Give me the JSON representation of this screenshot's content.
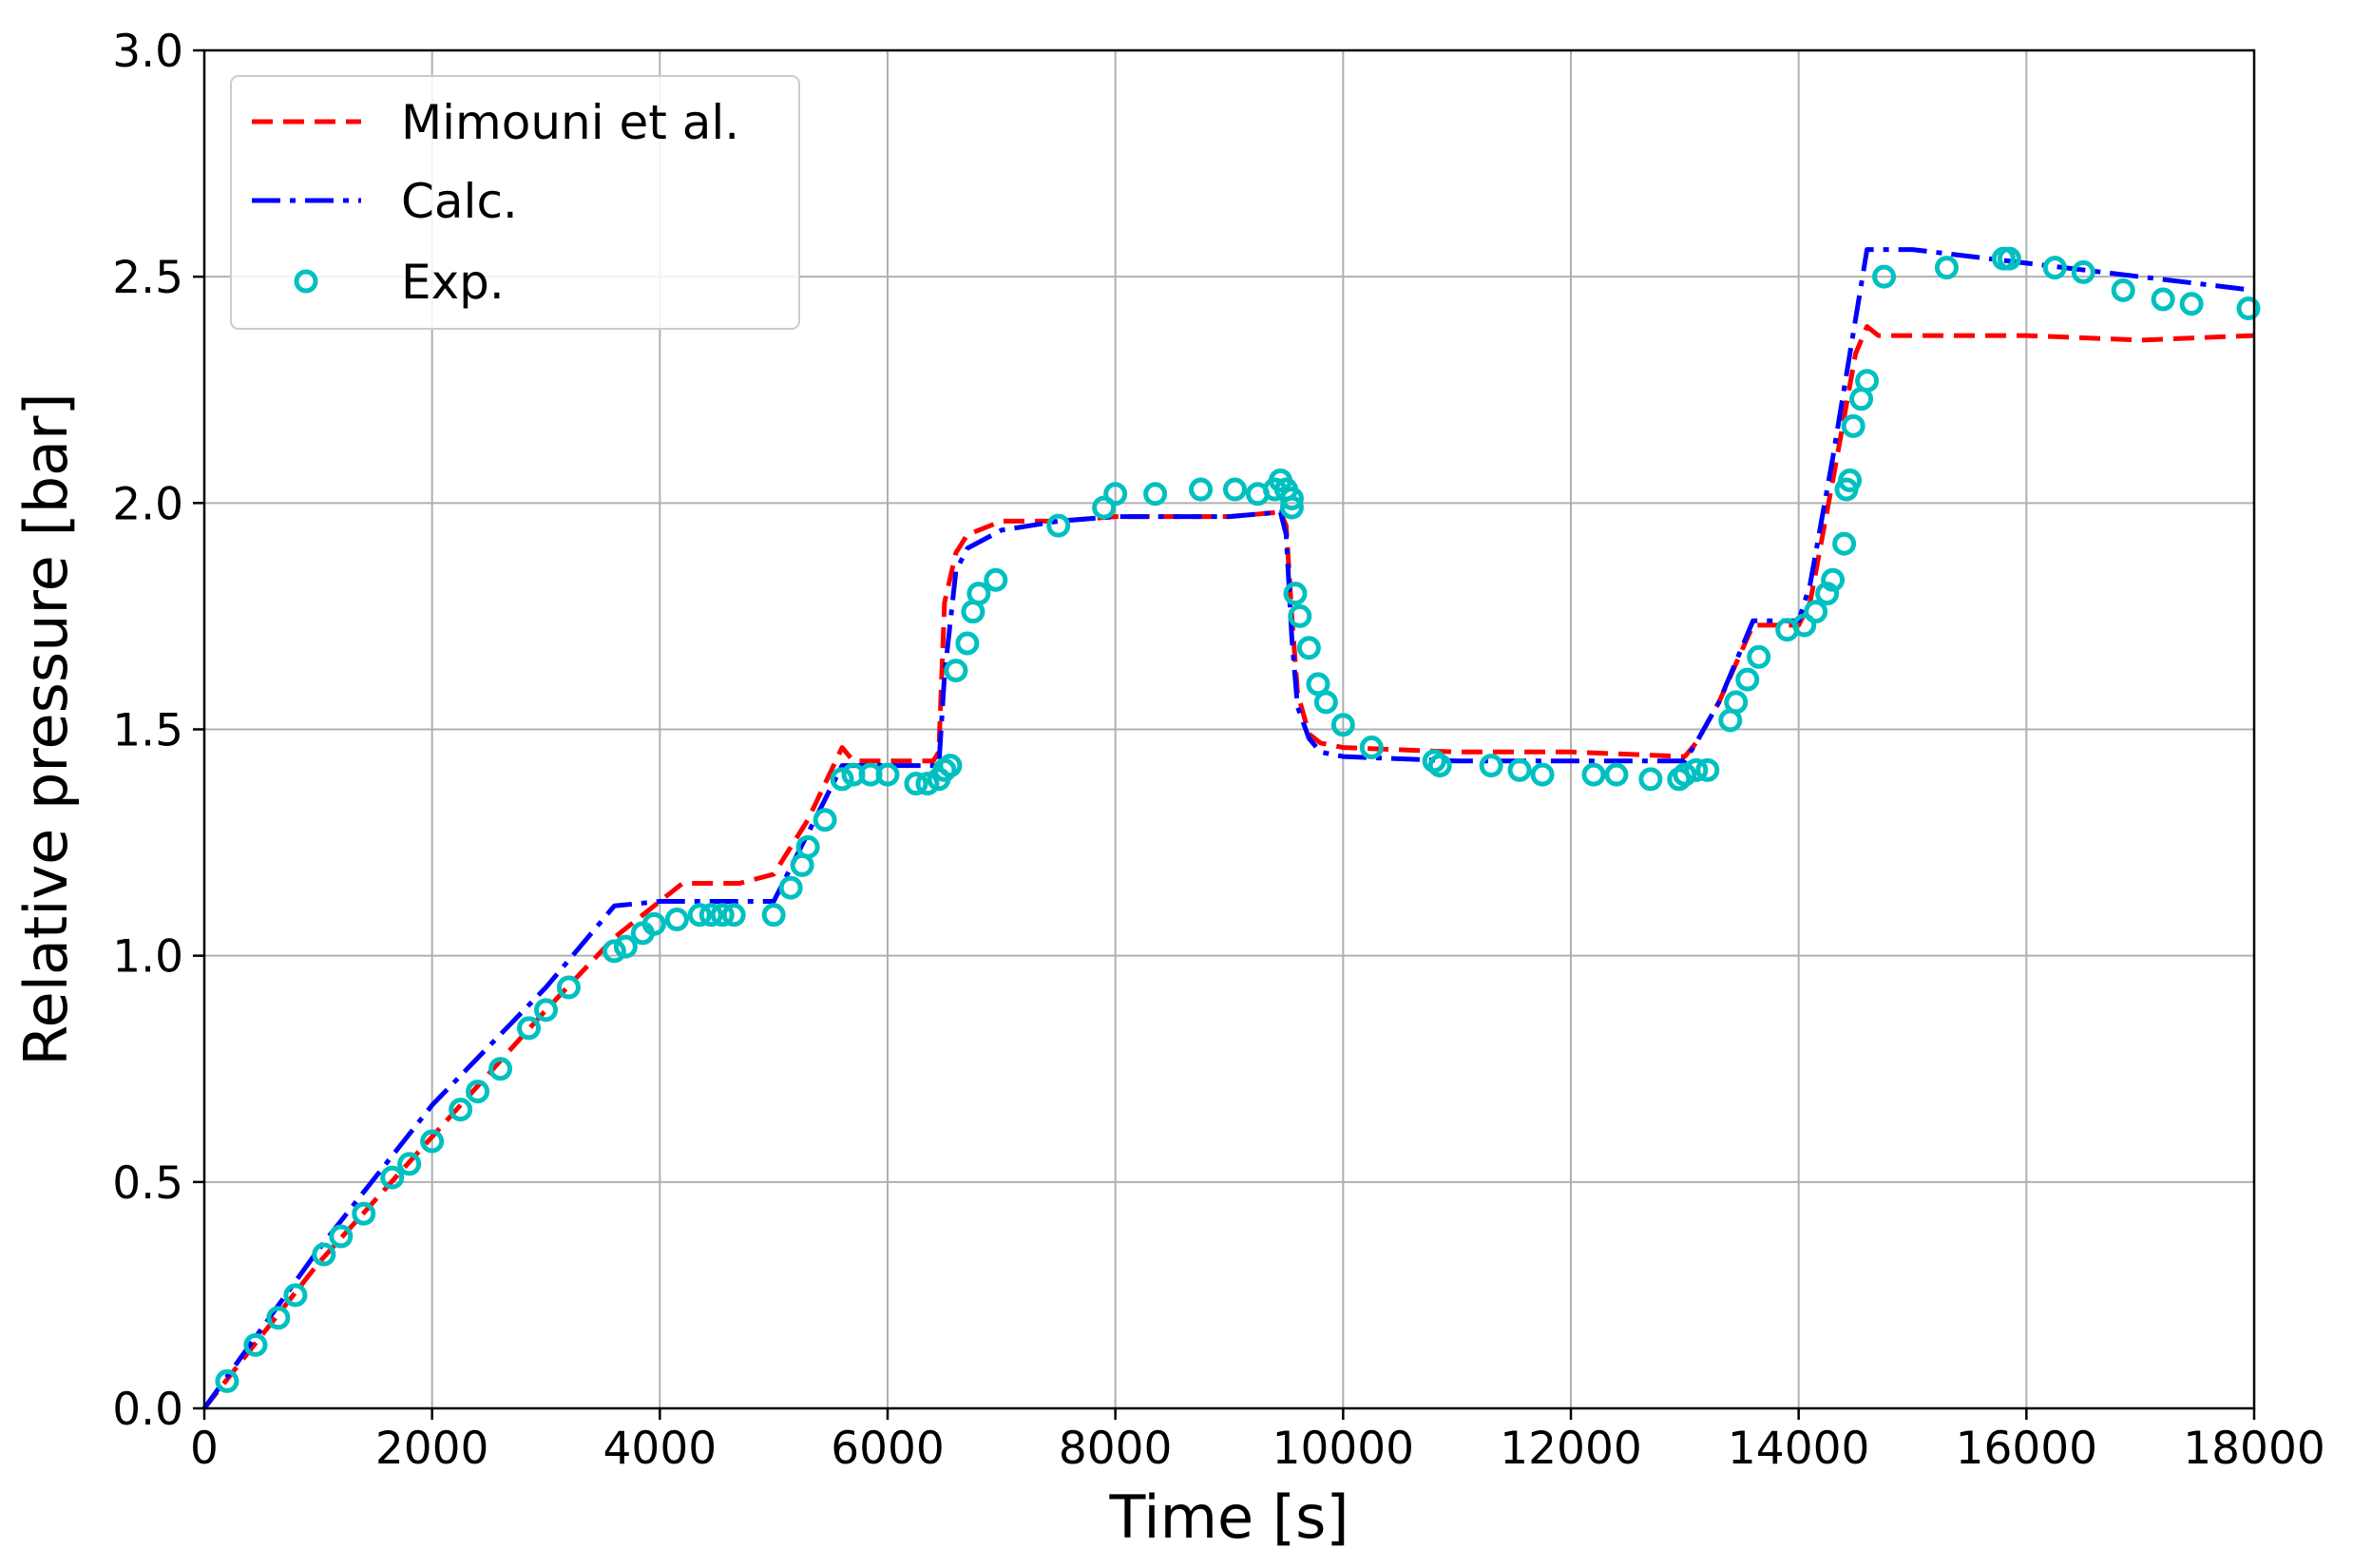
{
  "chart_data": {
    "type": "line",
    "title": "",
    "xlabel": "Time [s]",
    "ylabel": "Relative pressure [bar]",
    "xlim": [
      0,
      18000
    ],
    "ylim": [
      0.0,
      3.0
    ],
    "x_ticks": [
      0,
      2000,
      4000,
      6000,
      8000,
      10000,
      12000,
      14000,
      16000,
      18000
    ],
    "x_tick_labels": [
      "0",
      "2000",
      "4000",
      "6000",
      "8000",
      "10000",
      "12000",
      "14000",
      "16000",
      "18000"
    ],
    "y_ticks": [
      0.0,
      0.5,
      1.0,
      1.5,
      2.0,
      2.5,
      3.0
    ],
    "y_tick_labels": [
      "0.0",
      "0.5",
      "1.0",
      "1.5",
      "2.0",
      "2.5",
      "3.0"
    ],
    "grid": true,
    "legend_position": "top-left",
    "series": [
      {
        "name": "Mimouni et al.",
        "style": "dashed",
        "color": "#ff0000",
        "x": [
          0,
          1000,
          2000,
          3000,
          3600,
          4000,
          4200,
          4700,
          5000,
          5300,
          5600,
          5700,
          6000,
          6400,
          6450,
          6500,
          6600,
          6700,
          7000,
          7500,
          8000,
          8500,
          9000,
          9450,
          9500,
          9550,
          9600,
          9700,
          9800,
          10000,
          11000,
          12000,
          13000,
          13100,
          13300,
          13600,
          14000,
          14100,
          14300,
          14500,
          14600,
          14700,
          15000,
          16000,
          17000,
          18000
        ],
        "y": [
          0.0,
          0.32,
          0.6,
          0.88,
          1.04,
          1.12,
          1.16,
          1.16,
          1.18,
          1.3,
          1.46,
          1.43,
          1.43,
          1.43,
          1.45,
          1.78,
          1.89,
          1.93,
          1.96,
          1.96,
          1.97,
          1.97,
          1.97,
          1.98,
          1.95,
          1.75,
          1.58,
          1.49,
          1.47,
          1.46,
          1.45,
          1.45,
          1.44,
          1.47,
          1.56,
          1.73,
          1.73,
          1.78,
          2.05,
          2.33,
          2.39,
          2.37,
          2.37,
          2.37,
          2.36,
          2.37
        ]
      },
      {
        "name": "Calc.",
        "style": "dashdot",
        "color": "#0000ff",
        "x": [
          0,
          1000,
          2000,
          3000,
          3600,
          4000,
          5000,
          5200,
          5600,
          5700,
          6000,
          6450,
          6500,
          6600,
          6700,
          7000,
          7500,
          8000,
          9000,
          9450,
          9500,
          9550,
          9600,
          9700,
          9800,
          10000,
          11000,
          12000,
          13000,
          13100,
          13300,
          13600,
          14000,
          14100,
          14300,
          14600,
          14700,
          15000,
          16000,
          17000,
          18000
        ],
        "y": [
          0.0,
          0.35,
          0.67,
          0.93,
          1.11,
          1.12,
          1.12,
          1.22,
          1.42,
          1.42,
          1.42,
          1.42,
          1.62,
          1.85,
          1.9,
          1.94,
          1.96,
          1.97,
          1.97,
          1.98,
          1.93,
          1.7,
          1.55,
          1.48,
          1.45,
          1.44,
          1.43,
          1.43,
          1.43,
          1.47,
          1.56,
          1.74,
          1.74,
          1.82,
          2.1,
          2.56,
          2.56,
          2.56,
          2.53,
          2.5,
          2.47
        ]
      },
      {
        "name": "Exp.",
        "style": "markers",
        "color": "#00c0c0",
        "x": [
          200,
          450,
          650,
          800,
          1050,
          1200,
          1400,
          1650,
          1800,
          2000,
          2250,
          2400,
          2600,
          2850,
          3000,
          3200,
          3600,
          3700,
          3850,
          3950,
          4150,
          4350,
          4450,
          4550,
          4650,
          5000,
          5150,
          5250,
          5300,
          5450,
          5600,
          5700,
          5850,
          6000,
          6250,
          6350,
          6450,
          6500,
          6550,
          6600,
          6700,
          6750,
          6800,
          6950,
          7500,
          7900,
          8000,
          8350,
          8750,
          9050,
          9250,
          9400,
          9450,
          9500,
          9550,
          9550,
          9580,
          9620,
          9700,
          9780,
          9850,
          10000,
          10250,
          10800,
          10850,
          11300,
          11550,
          11750,
          12200,
          12400,
          12700,
          12950,
          13000,
          13100,
          13200,
          13400,
          13450,
          13550,
          13650,
          13900,
          14050,
          14150,
          14250,
          14300,
          14400,
          14420,
          14450,
          14480,
          14550,
          14600,
          14750,
          15300,
          15800,
          15850,
          16250,
          16500,
          16850,
          17200,
          17450,
          17950
        ],
        "y": [
          0.06,
          0.14,
          0.2,
          0.25,
          0.34,
          0.38,
          0.43,
          0.51,
          0.54,
          0.59,
          0.66,
          0.7,
          0.75,
          0.84,
          0.88,
          0.93,
          1.01,
          1.02,
          1.05,
          1.07,
          1.08,
          1.09,
          1.09,
          1.09,
          1.09,
          1.09,
          1.15,
          1.2,
          1.24,
          1.3,
          1.39,
          1.4,
          1.4,
          1.4,
          1.38,
          1.38,
          1.39,
          1.41,
          1.42,
          1.63,
          1.69,
          1.76,
          1.8,
          1.83,
          1.95,
          1.99,
          2.02,
          2.02,
          2.03,
          2.03,
          2.02,
          2.03,
          2.05,
          2.03,
          2.01,
          1.99,
          1.8,
          1.75,
          1.68,
          1.6,
          1.56,
          1.51,
          1.46,
          1.43,
          1.42,
          1.42,
          1.41,
          1.4,
          1.4,
          1.4,
          1.39,
          1.39,
          1.4,
          1.41,
          1.41,
          1.52,
          1.56,
          1.61,
          1.66,
          1.72,
          1.73,
          1.76,
          1.8,
          1.83,
          1.91,
          2.03,
          2.05,
          2.17,
          2.23,
          2.27,
          2.5,
          2.52,
          2.54,
          2.54,
          2.52,
          2.51,
          2.47,
          2.45,
          2.44,
          2.43
        ]
      }
    ]
  }
}
